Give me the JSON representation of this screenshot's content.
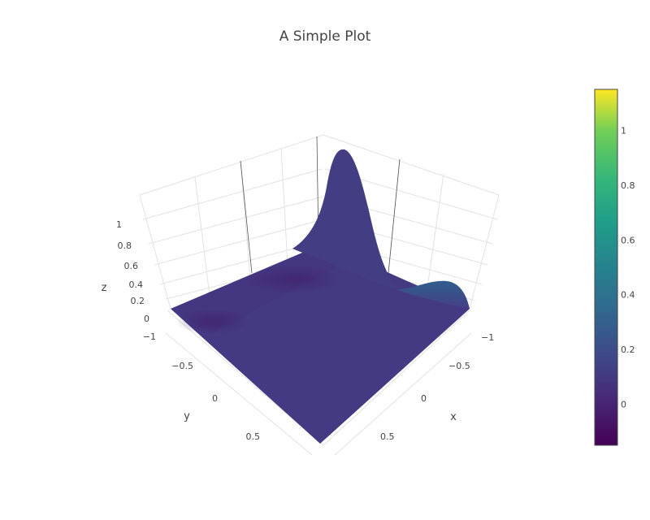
{
  "chart_data": {
    "type": "surface",
    "title": "A Simple Plot",
    "xlabel": "x",
    "ylabel": "y",
    "zlabel": "z",
    "x_ticks": [
      "−1",
      "−0.5",
      "0",
      "0.5"
    ],
    "y_ticks": [
      "−1",
      "−0.5",
      "0",
      "0.5"
    ],
    "z_ticks": [
      "0",
      "0.2",
      "0.4",
      "0.6",
      "0.8",
      "1"
    ],
    "xlim": [
      -1,
      1
    ],
    "ylim": [
      -1,
      1
    ],
    "zlim": [
      0,
      1.2
    ],
    "colorscale": "Viridis",
    "colorbar": {
      "ticks": [
        "0",
        "0.2",
        "0.4",
        "0.6",
        "0.8",
        "1"
      ],
      "range": [
        -0.15,
        1.15
      ]
    },
    "surface_peaks": [
      {
        "x": -1,
        "y": -1,
        "z": 1.15
      },
      {
        "x": 0.9,
        "y": -1,
        "z": 0.28
      }
    ],
    "surface_base_z": 0.05
  }
}
